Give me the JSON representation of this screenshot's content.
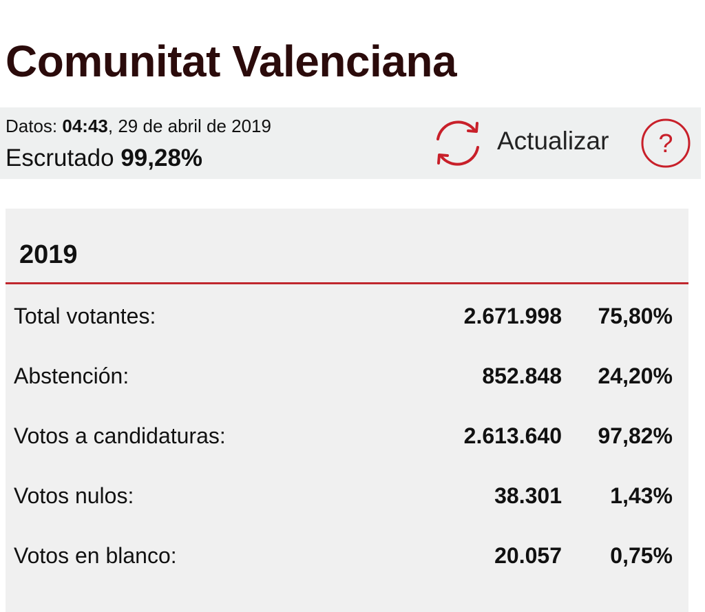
{
  "header": {
    "title": "Comunitat Valenciana"
  },
  "status": {
    "date_label": "Datos:",
    "time": "04:43",
    "date": ", 29 de abril de 2019",
    "count_label": "Escrutado",
    "count_value": "99,28%",
    "refresh_label": "Actualizar",
    "help_label": "?"
  },
  "table": {
    "year": "2019",
    "rows": [
      [
        "Total votantes:",
        "2.671.998",
        "75,80%"
      ],
      [
        "Abstención:",
        "852.848",
        "24,20%"
      ],
      [
        "Votos a candidaturas:",
        "2.613.640",
        "97,82%"
      ],
      [
        "Votos nulos:",
        "38.301",
        "1,43%"
      ],
      [
        "Votos en blanco:",
        "20.057",
        "0,75%"
      ]
    ]
  }
}
